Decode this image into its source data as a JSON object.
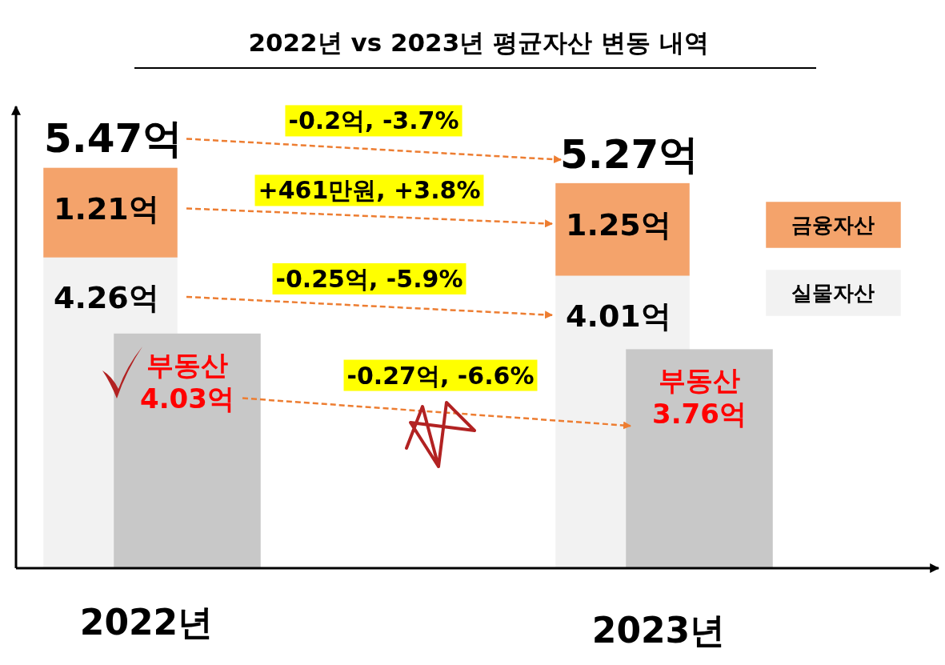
{
  "chart_data": {
    "type": "bar",
    "title": "2022년 vs 2023년 평균자산 변동 내역",
    "categories": [
      "2022년",
      "2023년"
    ],
    "stacked": true,
    "data_labels": true,
    "legend": "right",
    "tick_labels": "x",
    "totals": [
      "5.47억",
      "5.27억"
    ],
    "series": [
      {
        "name": "실물자산",
        "color": "#f2f2f2",
        "values": [
          4.26,
          4.01
        ],
        "value_labels": [
          "4.26억",
          "4.01억"
        ]
      },
      {
        "name": "금융자산",
        "color": "#f4a36b",
        "values": [
          1.21,
          1.25
        ],
        "value_labels": [
          "1.21억",
          "1.25억"
        ]
      },
      {
        "name": "부동산",
        "color": "#c8c8c8",
        "axis": "y2",
        "values": [
          4.03,
          3.76
        ],
        "value_labels": [
          "4.03억",
          "3.76억"
        ]
      }
    ],
    "annotations": [
      "-0.2억, -3.7%",
      "+461만원, +3.8%",
      "-0.25억, -5.9%",
      "-0.27억, -6.6%"
    ]
  }
}
